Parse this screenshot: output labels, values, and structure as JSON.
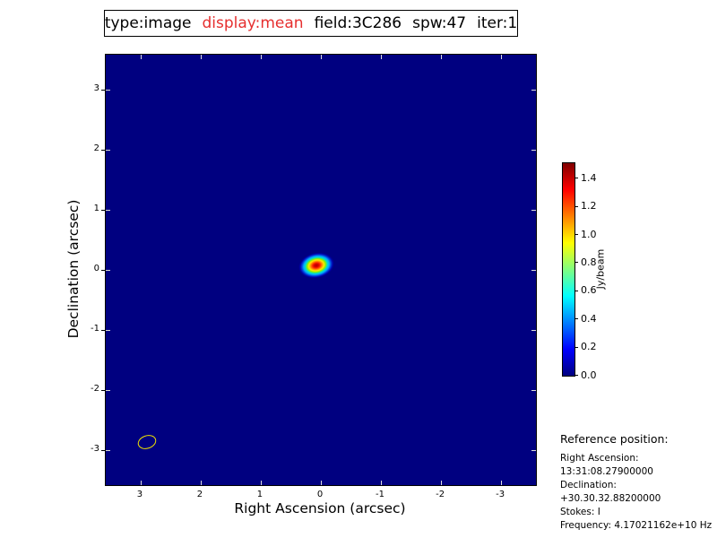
{
  "window": {
    "background": "#ffffff"
  },
  "title": {
    "segments": [
      {
        "text": "type:image",
        "css": "color:#000000"
      },
      {
        "text": "display:mean",
        "css": "color:#e62f2f"
      },
      {
        "text": "field:3C286",
        "css": "color:#000000"
      },
      {
        "text": "spw:47",
        "css": "color:#000000"
      },
      {
        "text": "iter:1",
        "css": "color:#000000"
      }
    ]
  },
  "axes": {
    "xlabel": "Right Ascension (arcsec)",
    "ylabel": "Declination (arcsec)"
  },
  "colorbar": {
    "label": "Jy/beam",
    "min": 0.0,
    "max": 1.51,
    "ticks": [
      0.0,
      0.2,
      0.4,
      0.6,
      0.8,
      1.0,
      1.2,
      1.4
    ],
    "colormap": "jet",
    "gradient_stops": [
      "#000080",
      "#0000ff",
      "#00ffff",
      "#ffff00",
      "#ff0000",
      "#7f0000"
    ]
  },
  "reference": {
    "header": "Reference position:",
    "lines": [
      "Right Ascension: 13:31:08.27900000",
      "Declination: +30.30.32.88200000",
      "Stokes: I",
      "Frequency: 4.17021162e+10 Hz"
    ]
  },
  "chart_data": {
    "type": "heatmap",
    "title": "type:image display:mean field:3C286 spw:47 iter:1",
    "xlabel": "Right Ascension (arcsec)",
    "ylabel": "Declination (arcsec)",
    "xlim": [
      3.58,
      -3.58
    ],
    "ylim": [
      -3.58,
      3.58
    ],
    "x_ticks": [
      3,
      2,
      1,
      0,
      -1,
      -2,
      -3
    ],
    "y_ticks": [
      3,
      2,
      1,
      0,
      -1,
      -2,
      -3
    ],
    "colormap": "jet",
    "background_value_jy_per_beam": 0.0,
    "colorbar_range": [
      0.0,
      1.51
    ],
    "features": [
      {
        "name": "point-source",
        "description": "compact Gaussian source, jet colormap core",
        "x_arcsec": 0.07,
        "y_arcsec": 0.08,
        "peak_jy_per_beam": 1.5,
        "angle_deg": -12
      },
      {
        "name": "beam-ellipse",
        "description": "synthesized beam outline",
        "x_arcsec": 2.9,
        "y_arcsec": -2.87,
        "angle_deg": -18,
        "color": "#f0e300"
      }
    ]
  }
}
